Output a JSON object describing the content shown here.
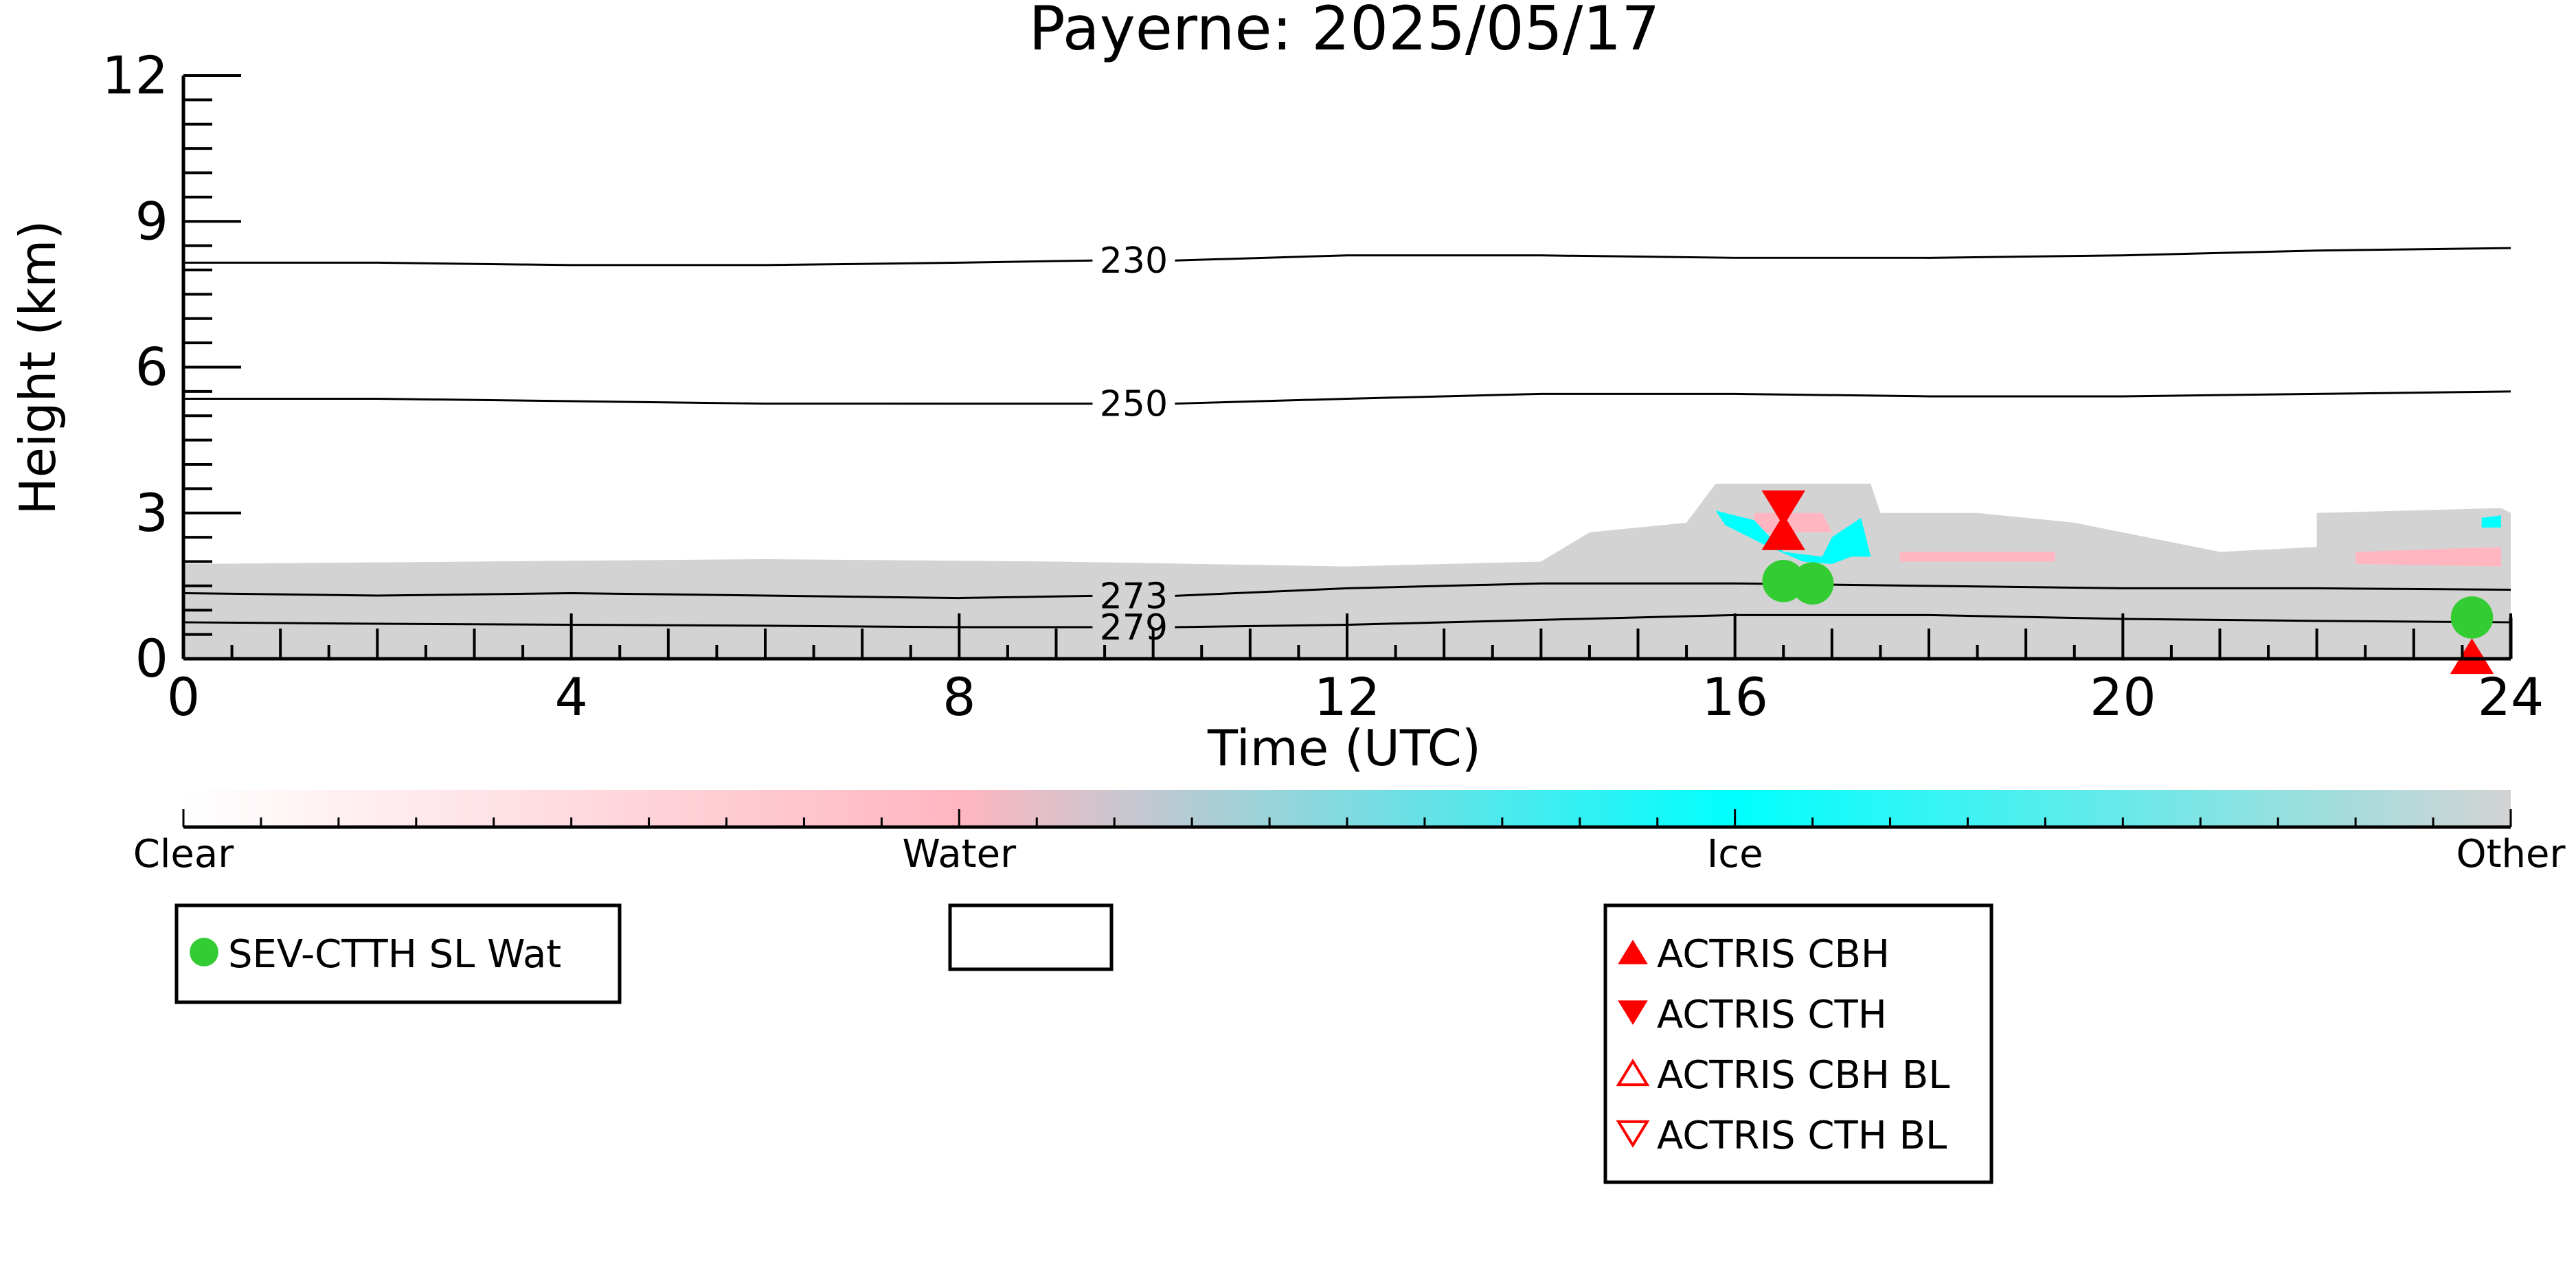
{
  "title": "Payerne: 2025/05/17",
  "chart_data": {
    "type": "heatmap",
    "title": "Payerne: 2025/05/17",
    "xlabel": "Time (UTC)",
    "ylabel": "Height (km)",
    "xlim": [
      0,
      24
    ],
    "ylim": [
      0,
      12
    ],
    "x_ticks": [
      0,
      4,
      8,
      12,
      16,
      20,
      24
    ],
    "y_ticks": [
      0,
      3,
      6,
      9,
      12
    ],
    "grid": false,
    "colors": {
      "other": "#d3d3d3",
      "water": "#ffb6c1",
      "ice": "#00ffff",
      "sev": "#33cc33",
      "actris": "#ff0000"
    },
    "isotherms": [
      {
        "label": "230",
        "label_x": 9.8,
        "points": [
          [
            0,
            8.15
          ],
          [
            2,
            8.15
          ],
          [
            4,
            8.1
          ],
          [
            6,
            8.1
          ],
          [
            8,
            8.15
          ],
          [
            10,
            8.2
          ],
          [
            12,
            8.3
          ],
          [
            14,
            8.3
          ],
          [
            16,
            8.25
          ],
          [
            18,
            8.25
          ],
          [
            20,
            8.3
          ],
          [
            22,
            8.4
          ],
          [
            24,
            8.45
          ]
        ]
      },
      {
        "label": "250",
        "label_x": 9.8,
        "points": [
          [
            0,
            5.35
          ],
          [
            2,
            5.35
          ],
          [
            4,
            5.3
          ],
          [
            6,
            5.25
          ],
          [
            8,
            5.25
          ],
          [
            10,
            5.25
          ],
          [
            12,
            5.35
          ],
          [
            14,
            5.45
          ],
          [
            16,
            5.45
          ],
          [
            18,
            5.4
          ],
          [
            20,
            5.4
          ],
          [
            22,
            5.45
          ],
          [
            24,
            5.5
          ]
        ]
      },
      {
        "label": "273",
        "label_x": 9.8,
        "points": [
          [
            0,
            1.35
          ],
          [
            2,
            1.3
          ],
          [
            4,
            1.35
          ],
          [
            6,
            1.3
          ],
          [
            8,
            1.25
          ],
          [
            10,
            1.3
          ],
          [
            12,
            1.45
          ],
          [
            14,
            1.55
          ],
          [
            16,
            1.55
          ],
          [
            18,
            1.5
          ],
          [
            20,
            1.45
          ],
          [
            22,
            1.45
          ],
          [
            24,
            1.42
          ]
        ]
      },
      {
        "label": "279",
        "label_x": 9.8,
        "points": [
          [
            0,
            0.75
          ],
          [
            2,
            0.72
          ],
          [
            4,
            0.7
          ],
          [
            6,
            0.68
          ],
          [
            8,
            0.65
          ],
          [
            10,
            0.65
          ],
          [
            12,
            0.7
          ],
          [
            14,
            0.8
          ],
          [
            16,
            0.9
          ],
          [
            18,
            0.9
          ],
          [
            20,
            0.82
          ],
          [
            22,
            0.78
          ],
          [
            24,
            0.75
          ]
        ]
      }
    ],
    "cloud_regions": [
      {
        "class": "other",
        "points": [
          [
            0,
            0
          ],
          [
            0,
            1.95
          ],
          [
            3,
            2.0
          ],
          [
            6,
            2.05
          ],
          [
            9,
            2.0
          ],
          [
            12,
            1.9
          ],
          [
            14,
            2.0
          ],
          [
            14.5,
            2.6
          ],
          [
            15.5,
            2.8
          ],
          [
            15.8,
            3.6
          ],
          [
            17.4,
            3.6
          ],
          [
            17.5,
            3.0
          ],
          [
            18.5,
            3.0
          ],
          [
            19.5,
            2.8
          ],
          [
            21,
            2.2
          ],
          [
            22,
            2.3
          ],
          [
            22,
            3.0
          ],
          [
            23.9,
            3.1
          ],
          [
            24,
            3.0
          ],
          [
            24,
            0
          ]
        ]
      },
      {
        "class": "water",
        "points": [
          [
            16.2,
            3.0
          ],
          [
            16.9,
            3.0
          ],
          [
            17.0,
            2.6
          ],
          [
            16.2,
            2.6
          ]
        ]
      },
      {
        "class": "water",
        "points": [
          [
            17.7,
            2.2
          ],
          [
            19.3,
            2.2
          ],
          [
            19.3,
            2.0
          ],
          [
            17.7,
            2.0
          ]
        ]
      },
      {
        "class": "water",
        "points": [
          [
            22.4,
            2.2
          ],
          [
            23.9,
            2.3
          ],
          [
            23.9,
            1.9
          ],
          [
            22.4,
            1.95
          ]
        ]
      },
      {
        "class": "ice",
        "points": [
          [
            15.8,
            3.05
          ],
          [
            16.2,
            2.85
          ],
          [
            16.5,
            2.2
          ],
          [
            16.9,
            2.1
          ],
          [
            17.0,
            2.5
          ],
          [
            17.3,
            2.9
          ],
          [
            17.4,
            2.1
          ],
          [
            17.2,
            2.1
          ],
          [
            17.0,
            1.95
          ],
          [
            16.7,
            2.0
          ],
          [
            16.3,
            2.35
          ],
          [
            15.9,
            2.75
          ]
        ]
      },
      {
        "class": "ice",
        "points": [
          [
            23.7,
            2.9
          ],
          [
            23.9,
            2.95
          ],
          [
            23.9,
            2.7
          ],
          [
            23.7,
            2.7
          ]
        ]
      }
    ],
    "markers": [
      {
        "series": "SEV-CTTH SL Wat",
        "type": "circle",
        "x": 16.5,
        "y": 1.6
      },
      {
        "series": "SEV-CTTH SL Wat",
        "type": "circle",
        "x": 16.8,
        "y": 1.55
      },
      {
        "series": "SEV-CTTH SL Wat",
        "type": "circle",
        "x": 23.6,
        "y": 0.85
      },
      {
        "series": "ACTRIS CTH",
        "type": "tri-down",
        "x": 16.5,
        "y": 3.1
      },
      {
        "series": "ACTRIS CBH",
        "type": "tri-up",
        "x": 16.5,
        "y": 2.6
      },
      {
        "series": "ACTRIS CBH",
        "type": "tri-up",
        "x": 23.6,
        "y": 0.05
      }
    ],
    "colorbar": {
      "labels": [
        "Clear",
        "Water",
        "Ice",
        "Other"
      ],
      "gradient_stops": [
        "#ffffff",
        "#ffb6c1",
        "#00ffff",
        "#d3d3d3"
      ]
    },
    "legends": [
      {
        "entries": [
          {
            "label": "SEV-CTTH SL Wat",
            "marker": "circle"
          }
        ]
      },
      {
        "entries": []
      },
      {
        "entries": [
          {
            "label": "ACTRIS CBH",
            "marker": "tri-up"
          },
          {
            "label": "ACTRIS CTH",
            "marker": "tri-down"
          },
          {
            "label": "ACTRIS CBH BL",
            "marker": "tri-up-open"
          },
          {
            "label": "ACTRIS CTH BL",
            "marker": "tri-down-open"
          }
        ]
      }
    ]
  }
}
